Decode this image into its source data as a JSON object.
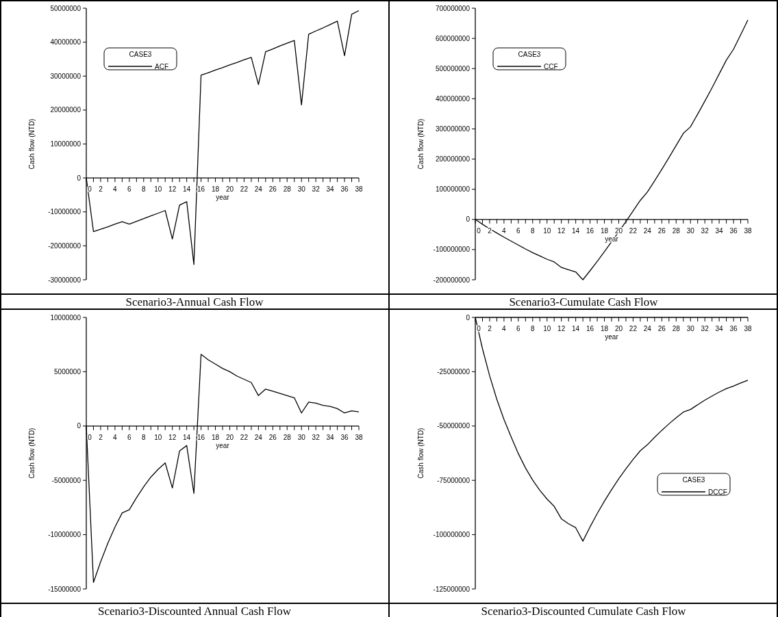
{
  "chart_data": [
    {
      "type": "line",
      "title": "Scenario3-Annual Cash Flow",
      "xlabel": "year",
      "ylabel": "Cash flow (NTD)",
      "legend_title": "CASE3",
      "legend": "top left",
      "x": [
        0,
        1,
        2,
        3,
        4,
        5,
        6,
        7,
        8,
        9,
        10,
        11,
        12,
        13,
        14,
        15,
        16,
        17,
        18,
        19,
        20,
        21,
        22,
        23,
        24,
        25,
        26,
        27,
        28,
        29,
        30,
        31,
        32,
        33,
        34,
        35,
        36,
        37,
        38
      ],
      "series": [
        {
          "name": "ACF",
          "color": "#000000",
          "values": [
            0,
            -15800000,
            -15100000,
            -14400000,
            -13600000,
            -12900000,
            -13600000,
            -12800000,
            -12000000,
            -11200000,
            -10400000,
            -9600000,
            -18000000,
            -8000000,
            -7000000,
            -25500000,
            30300000,
            31000000,
            31800000,
            32500000,
            33300000,
            34000000,
            34800000,
            35500000,
            27500000,
            37200000,
            38000000,
            38900000,
            39700000,
            40500000,
            21500000,
            42300000,
            43300000,
            44200000,
            45200000,
            46200000,
            36000000,
            48200000,
            49300000
          ]
        }
      ],
      "xlim": [
        0,
        38
      ],
      "xticks": [
        0,
        {
          "value": 1,
          "label": null
        },
        2,
        {
          "value": 3,
          "label": null
        },
        4,
        {
          "value": 5,
          "label": null
        },
        6,
        {
          "value": 7,
          "label": null
        },
        8,
        {
          "value": 9,
          "label": null
        },
        10,
        {
          "value": 11,
          "label": null
        },
        12,
        {
          "value": 13,
          "label": null
        },
        14,
        {
          "value": 15,
          "label": null
        },
        16,
        {
          "value": 17,
          "label": null
        },
        18,
        {
          "value": 19,
          "label": null
        },
        20,
        {
          "value": 21,
          "label": null
        },
        22,
        {
          "value": 23,
          "label": null
        },
        24,
        {
          "value": 25,
          "label": null
        },
        26,
        {
          "value": 27,
          "label": null
        },
        28,
        {
          "value": 29,
          "label": null
        },
        30,
        {
          "value": 31,
          "label": null
        },
        32,
        {
          "value": 33,
          "label": null
        },
        34,
        {
          "value": 35,
          "label": null
        },
        36,
        {
          "value": 37,
          "label": null
        },
        38
      ],
      "ylim": [
        -30000000,
        50000000
      ],
      "yticks": [
        -30000000,
        -20000000,
        -10000000,
        0,
        10000000,
        20000000,
        30000000,
        40000000,
        50000000
      ]
    },
    {
      "type": "line",
      "title": "Scenario3-Cumulate Cash Flow",
      "xlabel": "year",
      "ylabel": "Cash flow (NTD)",
      "legend_title": "CASE3",
      "legend": "top left",
      "x": [
        0,
        1,
        2,
        3,
        4,
        5,
        6,
        7,
        8,
        9,
        10,
        11,
        12,
        13,
        14,
        15,
        16,
        17,
        18,
        19,
        20,
        21,
        22,
        23,
        24,
        25,
        26,
        27,
        28,
        29,
        30,
        31,
        32,
        33,
        34,
        35,
        36,
        37,
        38
      ],
      "series": [
        {
          "name": "CCF",
          "color": "#000000",
          "values": [
            0,
            -16000000,
            -31000000,
            -45000000,
            -59000000,
            -72000000,
            -85000000,
            -98000000,
            -110000000,
            -121000000,
            -132000000,
            -141000000,
            -159000000,
            -167000000,
            -174000000,
            -200000000,
            -170000000,
            -139000000,
            -107000000,
            -74000000,
            -41000000,
            -7000000,
            28000000,
            63000000,
            91000000,
            128000000,
            166000000,
            205000000,
            245000000,
            285000000,
            307000000,
            349000000,
            392000000,
            436000000,
            482000000,
            528000000,
            564000000,
            612000000,
            661000000
          ]
        }
      ],
      "xlim": [
        0,
        38
      ],
      "xticks": [
        0,
        {
          "value": 1,
          "label": null
        },
        2,
        {
          "value": 3,
          "label": null
        },
        4,
        {
          "value": 5,
          "label": null
        },
        6,
        {
          "value": 7,
          "label": null
        },
        8,
        {
          "value": 9,
          "label": null
        },
        10,
        {
          "value": 11,
          "label": null
        },
        12,
        {
          "value": 13,
          "label": null
        },
        14,
        {
          "value": 15,
          "label": null
        },
        16,
        {
          "value": 17,
          "label": null
        },
        18,
        {
          "value": 19,
          "label": null
        },
        20,
        {
          "value": 21,
          "label": null
        },
        22,
        {
          "value": 23,
          "label": null
        },
        24,
        {
          "value": 25,
          "label": null
        },
        26,
        {
          "value": 27,
          "label": null
        },
        28,
        {
          "value": 29,
          "label": null
        },
        30,
        {
          "value": 31,
          "label": null
        },
        32,
        {
          "value": 33,
          "label": null
        },
        34,
        {
          "value": 35,
          "label": null
        },
        36,
        {
          "value": 37,
          "label": null
        },
        38
      ],
      "ylim": [
        -200000000,
        700000000
      ],
      "yticks": [
        -200000000,
        -100000000,
        0,
        100000000,
        200000000,
        300000000,
        400000000,
        500000000,
        600000000,
        700000000
      ]
    },
    {
      "type": "line",
      "title": "Scenario3-Discounted Annual Cash Flow",
      "xlabel": "year",
      "ylabel": "Cash flow (NTD)",
      "x": [
        0,
        1,
        2,
        3,
        4,
        5,
        6,
        7,
        8,
        9,
        10,
        11,
        12,
        13,
        14,
        15,
        16,
        17,
        18,
        19,
        20,
        21,
        22,
        23,
        24,
        25,
        26,
        27,
        28,
        29,
        30,
        31,
        32,
        33,
        34,
        35,
        36,
        37,
        38
      ],
      "series": [
        {
          "color": "#000000",
          "values": [
            0,
            -14400000,
            -12500000,
            -10800000,
            -9300000,
            -8000000,
            -7700000,
            -6600000,
            -5600000,
            -4700000,
            -4000000,
            -3400000,
            -5700000,
            -2300000,
            -1800000,
            -6200000,
            6600000,
            6100000,
            5700000,
            5300000,
            5000000,
            4600000,
            4300000,
            4000000,
            2800000,
            3400000,
            3200000,
            3000000,
            2800000,
            2600000,
            1200000,
            2200000,
            2100000,
            1900000,
            1800000,
            1600000,
            1200000,
            1400000,
            1300000
          ]
        }
      ],
      "xlim": [
        0,
        38
      ],
      "xticks": [
        0,
        {
          "value": 1,
          "label": null
        },
        2,
        {
          "value": 3,
          "label": null
        },
        4,
        {
          "value": 5,
          "label": null
        },
        6,
        {
          "value": 7,
          "label": null
        },
        8,
        {
          "value": 9,
          "label": null
        },
        10,
        {
          "value": 11,
          "label": null
        },
        12,
        {
          "value": 13,
          "label": null
        },
        14,
        {
          "value": 15,
          "label": null
        },
        16,
        {
          "value": 17,
          "label": null
        },
        18,
        {
          "value": 19,
          "label": null
        },
        20,
        {
          "value": 21,
          "label": null
        },
        22,
        {
          "value": 23,
          "label": null
        },
        24,
        {
          "value": 25,
          "label": null
        },
        26,
        {
          "value": 27,
          "label": null
        },
        28,
        {
          "value": 29,
          "label": null
        },
        30,
        {
          "value": 31,
          "label": null
        },
        32,
        {
          "value": 33,
          "label": null
        },
        34,
        {
          "value": 35,
          "label": null
        },
        36,
        {
          "value": 37,
          "label": null
        },
        38
      ],
      "ylim": [
        -15000000,
        10000000
      ],
      "yticks": [
        -15000000,
        -10000000,
        -5000000,
        0,
        5000000,
        10000000
      ]
    },
    {
      "type": "line",
      "title": "Scenario3-Discounted Cumulate Cash Flow",
      "xlabel": "year",
      "ylabel": "Cash flow (NTD)",
      "legend_title": "CASE3",
      "legend": "right",
      "x": [
        0,
        1,
        2,
        3,
        4,
        5,
        6,
        7,
        8,
        9,
        10,
        11,
        12,
        13,
        14,
        15,
        16,
        17,
        18,
        19,
        20,
        21,
        22,
        23,
        24,
        25,
        26,
        27,
        28,
        29,
        30,
        31,
        32,
        33,
        34,
        35,
        36,
        37,
        38
      ],
      "series": [
        {
          "name": "DCCF",
          "color": "#000000",
          "values": [
            0,
            -14400000,
            -26900000,
            -37700000,
            -47000000,
            -55000000,
            -62700000,
            -69300000,
            -74900000,
            -79600000,
            -83600000,
            -87000000,
            -92700000,
            -95000000,
            -96800000,
            -103000000,
            -96400000,
            -90300000,
            -84600000,
            -79300000,
            -74300000,
            -69700000,
            -65400000,
            -61400000,
            -58600000,
            -55200000,
            -52000000,
            -49000000,
            -46200000,
            -43600000,
            -42400000,
            -40200000,
            -38100000,
            -36200000,
            -34400000,
            -32800000,
            -31600000,
            -30200000,
            -28900000
          ]
        }
      ],
      "xlim": [
        0,
        38
      ],
      "xticks": [
        0,
        {
          "value": 1,
          "label": null
        },
        2,
        {
          "value": 3,
          "label": null
        },
        4,
        {
          "value": 5,
          "label": null
        },
        6,
        {
          "value": 7,
          "label": null
        },
        8,
        {
          "value": 9,
          "label": null
        },
        10,
        {
          "value": 11,
          "label": null
        },
        12,
        {
          "value": 13,
          "label": null
        },
        14,
        {
          "value": 15,
          "label": null
        },
        16,
        {
          "value": 17,
          "label": null
        },
        18,
        {
          "value": 19,
          "label": null
        },
        20,
        {
          "value": 21,
          "label": null
        },
        22,
        {
          "value": 23,
          "label": null
        },
        24,
        {
          "value": 25,
          "label": null
        },
        26,
        {
          "value": 27,
          "label": null
        },
        28,
        {
          "value": 29,
          "label": null
        },
        30,
        {
          "value": 31,
          "label": null
        },
        32,
        {
          "value": 33,
          "label": null
        },
        34,
        {
          "value": 35,
          "label": null
        },
        36,
        {
          "value": 37,
          "label": null
        },
        38
      ],
      "ylim": [
        -125000000,
        0
      ],
      "yticks": [
        -125000000,
        -100000000,
        -75000000,
        -50000000,
        -25000000,
        0
      ]
    }
  ]
}
